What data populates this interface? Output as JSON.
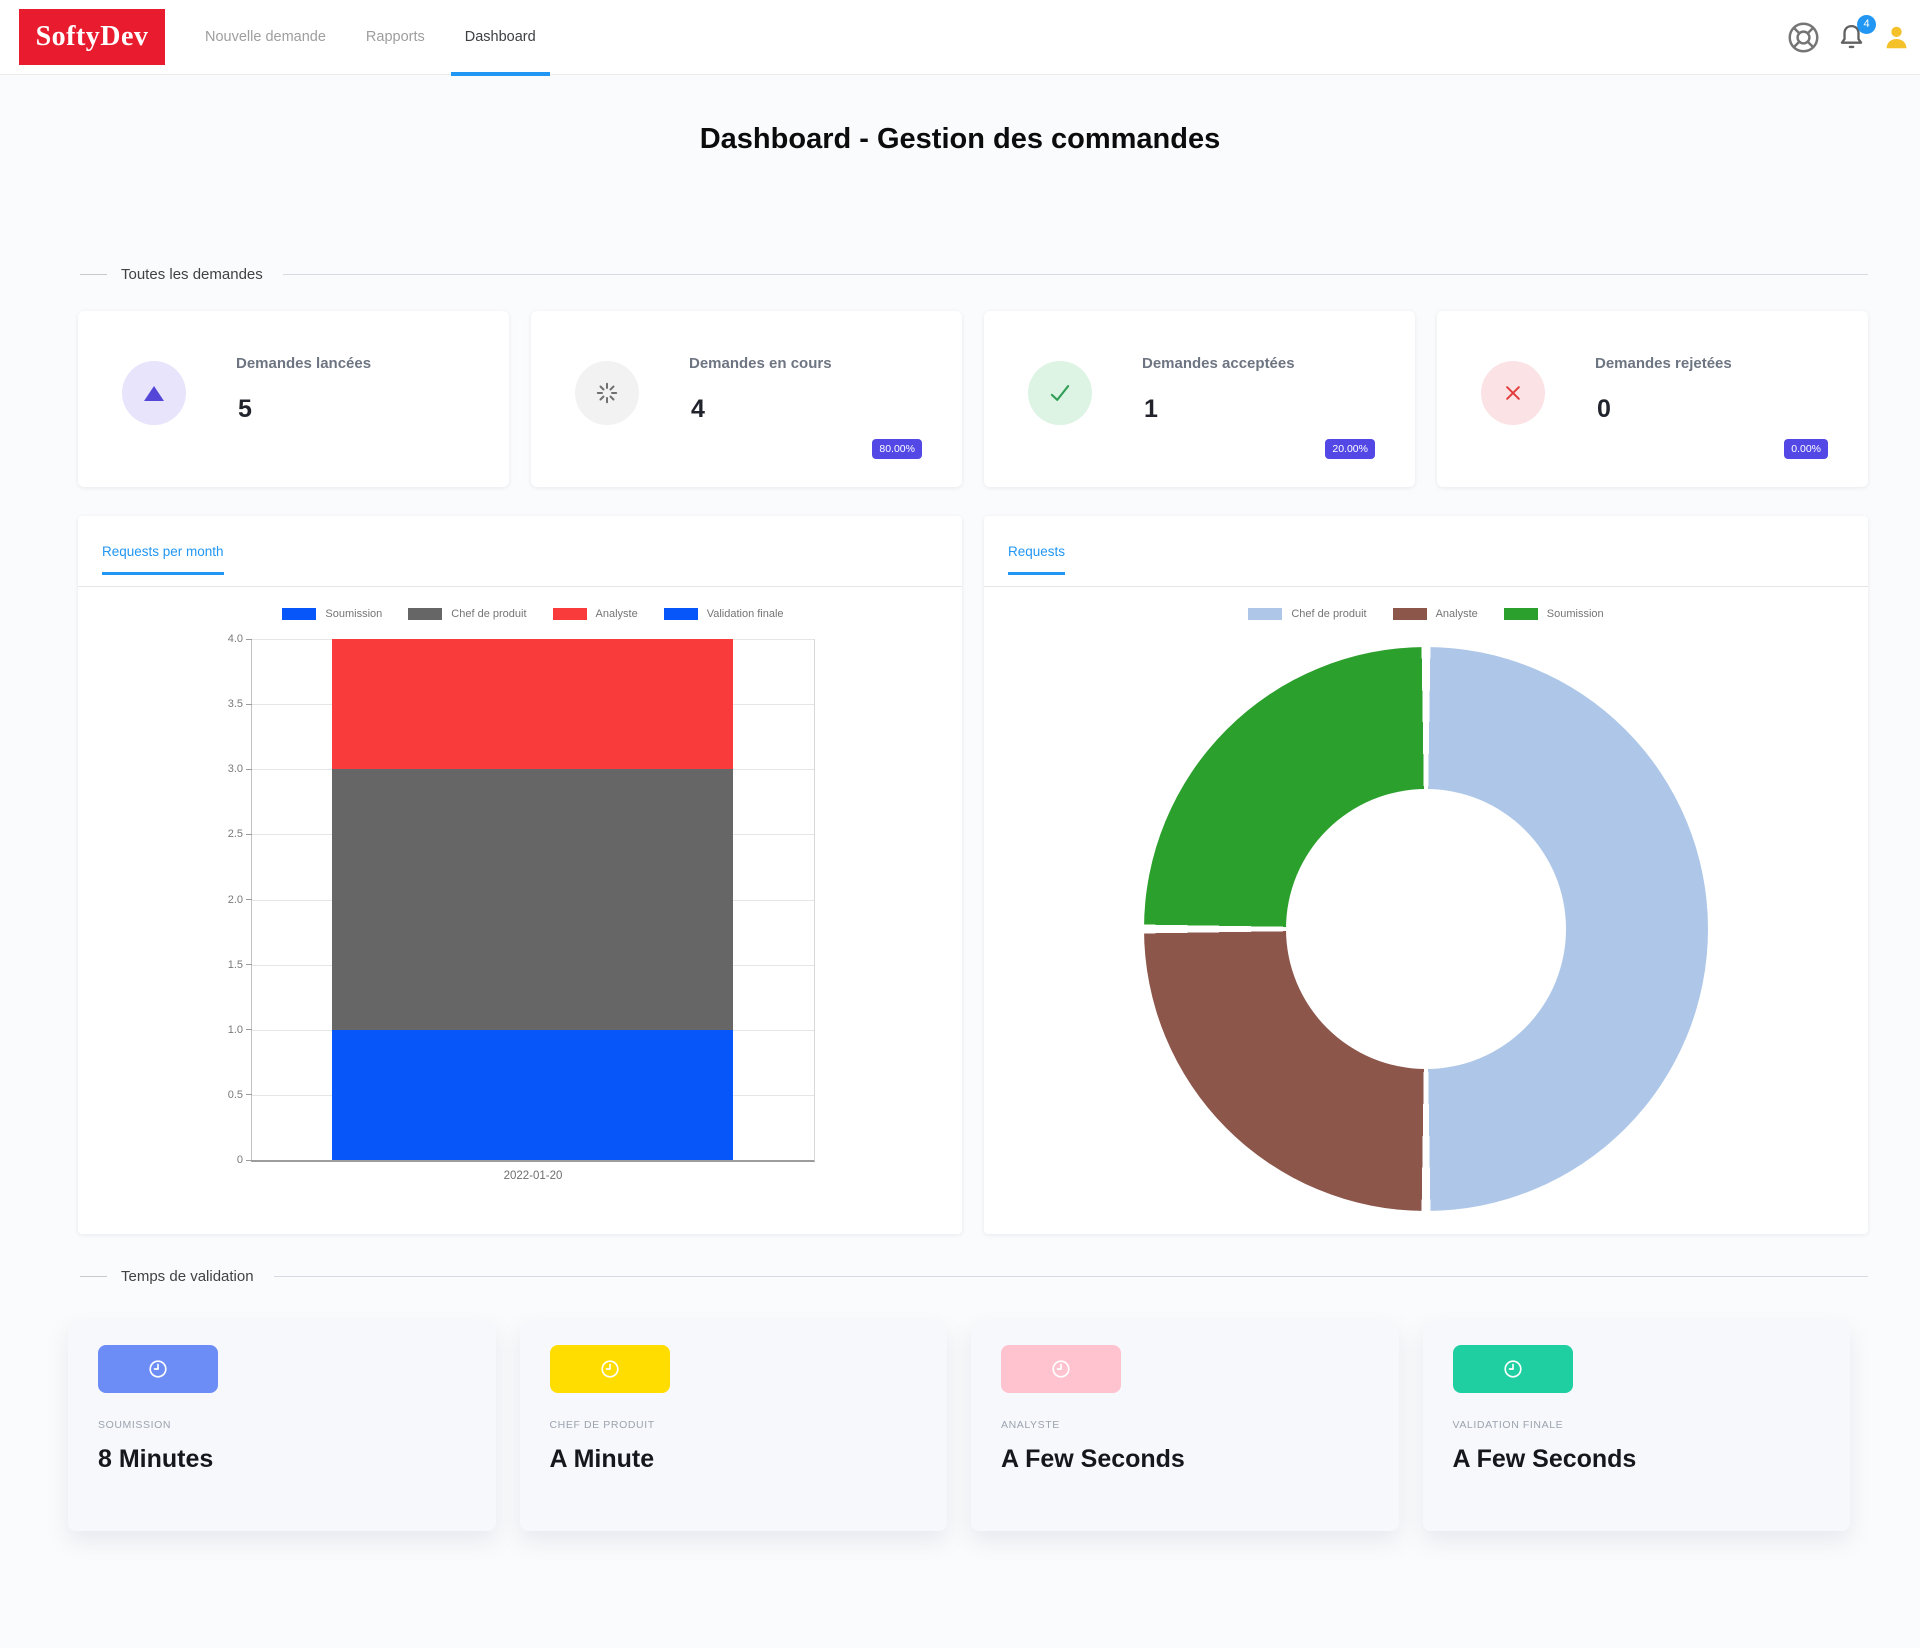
{
  "nav": {
    "logo_text": "SoftyDev",
    "items": [
      {
        "label": "Nouvelle demande"
      },
      {
        "label": "Rapports"
      },
      {
        "label": "Dashboard"
      }
    ],
    "notification_badge": "4"
  },
  "page_title": "Dashboard - Gestion des commandes",
  "section_all_requests": {
    "title": "Toutes les demandes"
  },
  "section_validation_time": {
    "title": "Temps de validation"
  },
  "badge_color": "#5348e5",
  "accent_blue": "#2196f3",
  "logo_red": "#e81c2e",
  "stat_cards": [
    {
      "label": "Demandes lancées",
      "value": "5",
      "icon": "triangle-up-icon",
      "icon_color": "#5447d8",
      "icon_bg": "#e7e4fb"
    },
    {
      "label": "Demandes en cours",
      "value": "4",
      "badge": "80.00%",
      "icon": "spinner-icon",
      "icon_color": "#707070",
      "icon_bg": "#f2f2f3"
    },
    {
      "label": "Demandes acceptées",
      "value": "1",
      "badge": "20.00%",
      "icon": "check-icon",
      "icon_color": "#2f9e54",
      "icon_bg": "#ddf4e4"
    },
    {
      "label": "Demandes rejetées",
      "value": "0",
      "badge": "0.00%",
      "icon": "x-icon",
      "icon_color": "#e23b3b",
      "icon_bg": "#fbe2e4"
    }
  ],
  "chart_data": [
    {
      "type": "bar",
      "stacked": true,
      "tab_label": "Requests per month",
      "categories": [
        "2022-01-20"
      ],
      "series": [
        {
          "name": "Soumission",
          "values": [
            1
          ],
          "color": "#0656fa"
        },
        {
          "name": "Chef de produit",
          "values": [
            2
          ],
          "color": "#666666"
        },
        {
          "name": "Analyste",
          "values": [
            1
          ],
          "color": "#f93b3b"
        },
        {
          "name": "Validation finale",
          "values": [
            0
          ],
          "color": "#0656fa"
        }
      ],
      "ylim": [
        0,
        4
      ],
      "yticks": [
        0,
        0.5,
        1,
        1.5,
        2,
        2.5,
        3,
        3.5,
        4
      ],
      "ytick_labels": [
        "0",
        "0.5",
        "1.0",
        "1.5",
        "2.0",
        "2.5",
        "3.0",
        "3.5",
        "4.0"
      ],
      "grid": true,
      "legend_position": "top"
    },
    {
      "type": "pie",
      "donut": true,
      "tab_label": "Requests",
      "labels": [
        "Chef de produit",
        "Analyste",
        "Soumission"
      ],
      "values_percent": [
        50,
        25,
        25
      ],
      "colors": [
        "#aec7e8",
        "#8c564b",
        "#2ca02c"
      ],
      "legend_position": "top"
    }
  ],
  "time_cards": [
    {
      "label": "SOUMISSION",
      "value": "8 Minutes",
      "color": "#6d8df6"
    },
    {
      "label": "CHEF DE PRODUIT",
      "value": "A Minute",
      "color": "#ffdd00"
    },
    {
      "label": "ANALYSTE",
      "value": "A Few Seconds",
      "color": "#ffc3cf"
    },
    {
      "label": "VALIDATION FINALE",
      "value": "A Few Seconds",
      "color": "#1fcfa2"
    }
  ]
}
